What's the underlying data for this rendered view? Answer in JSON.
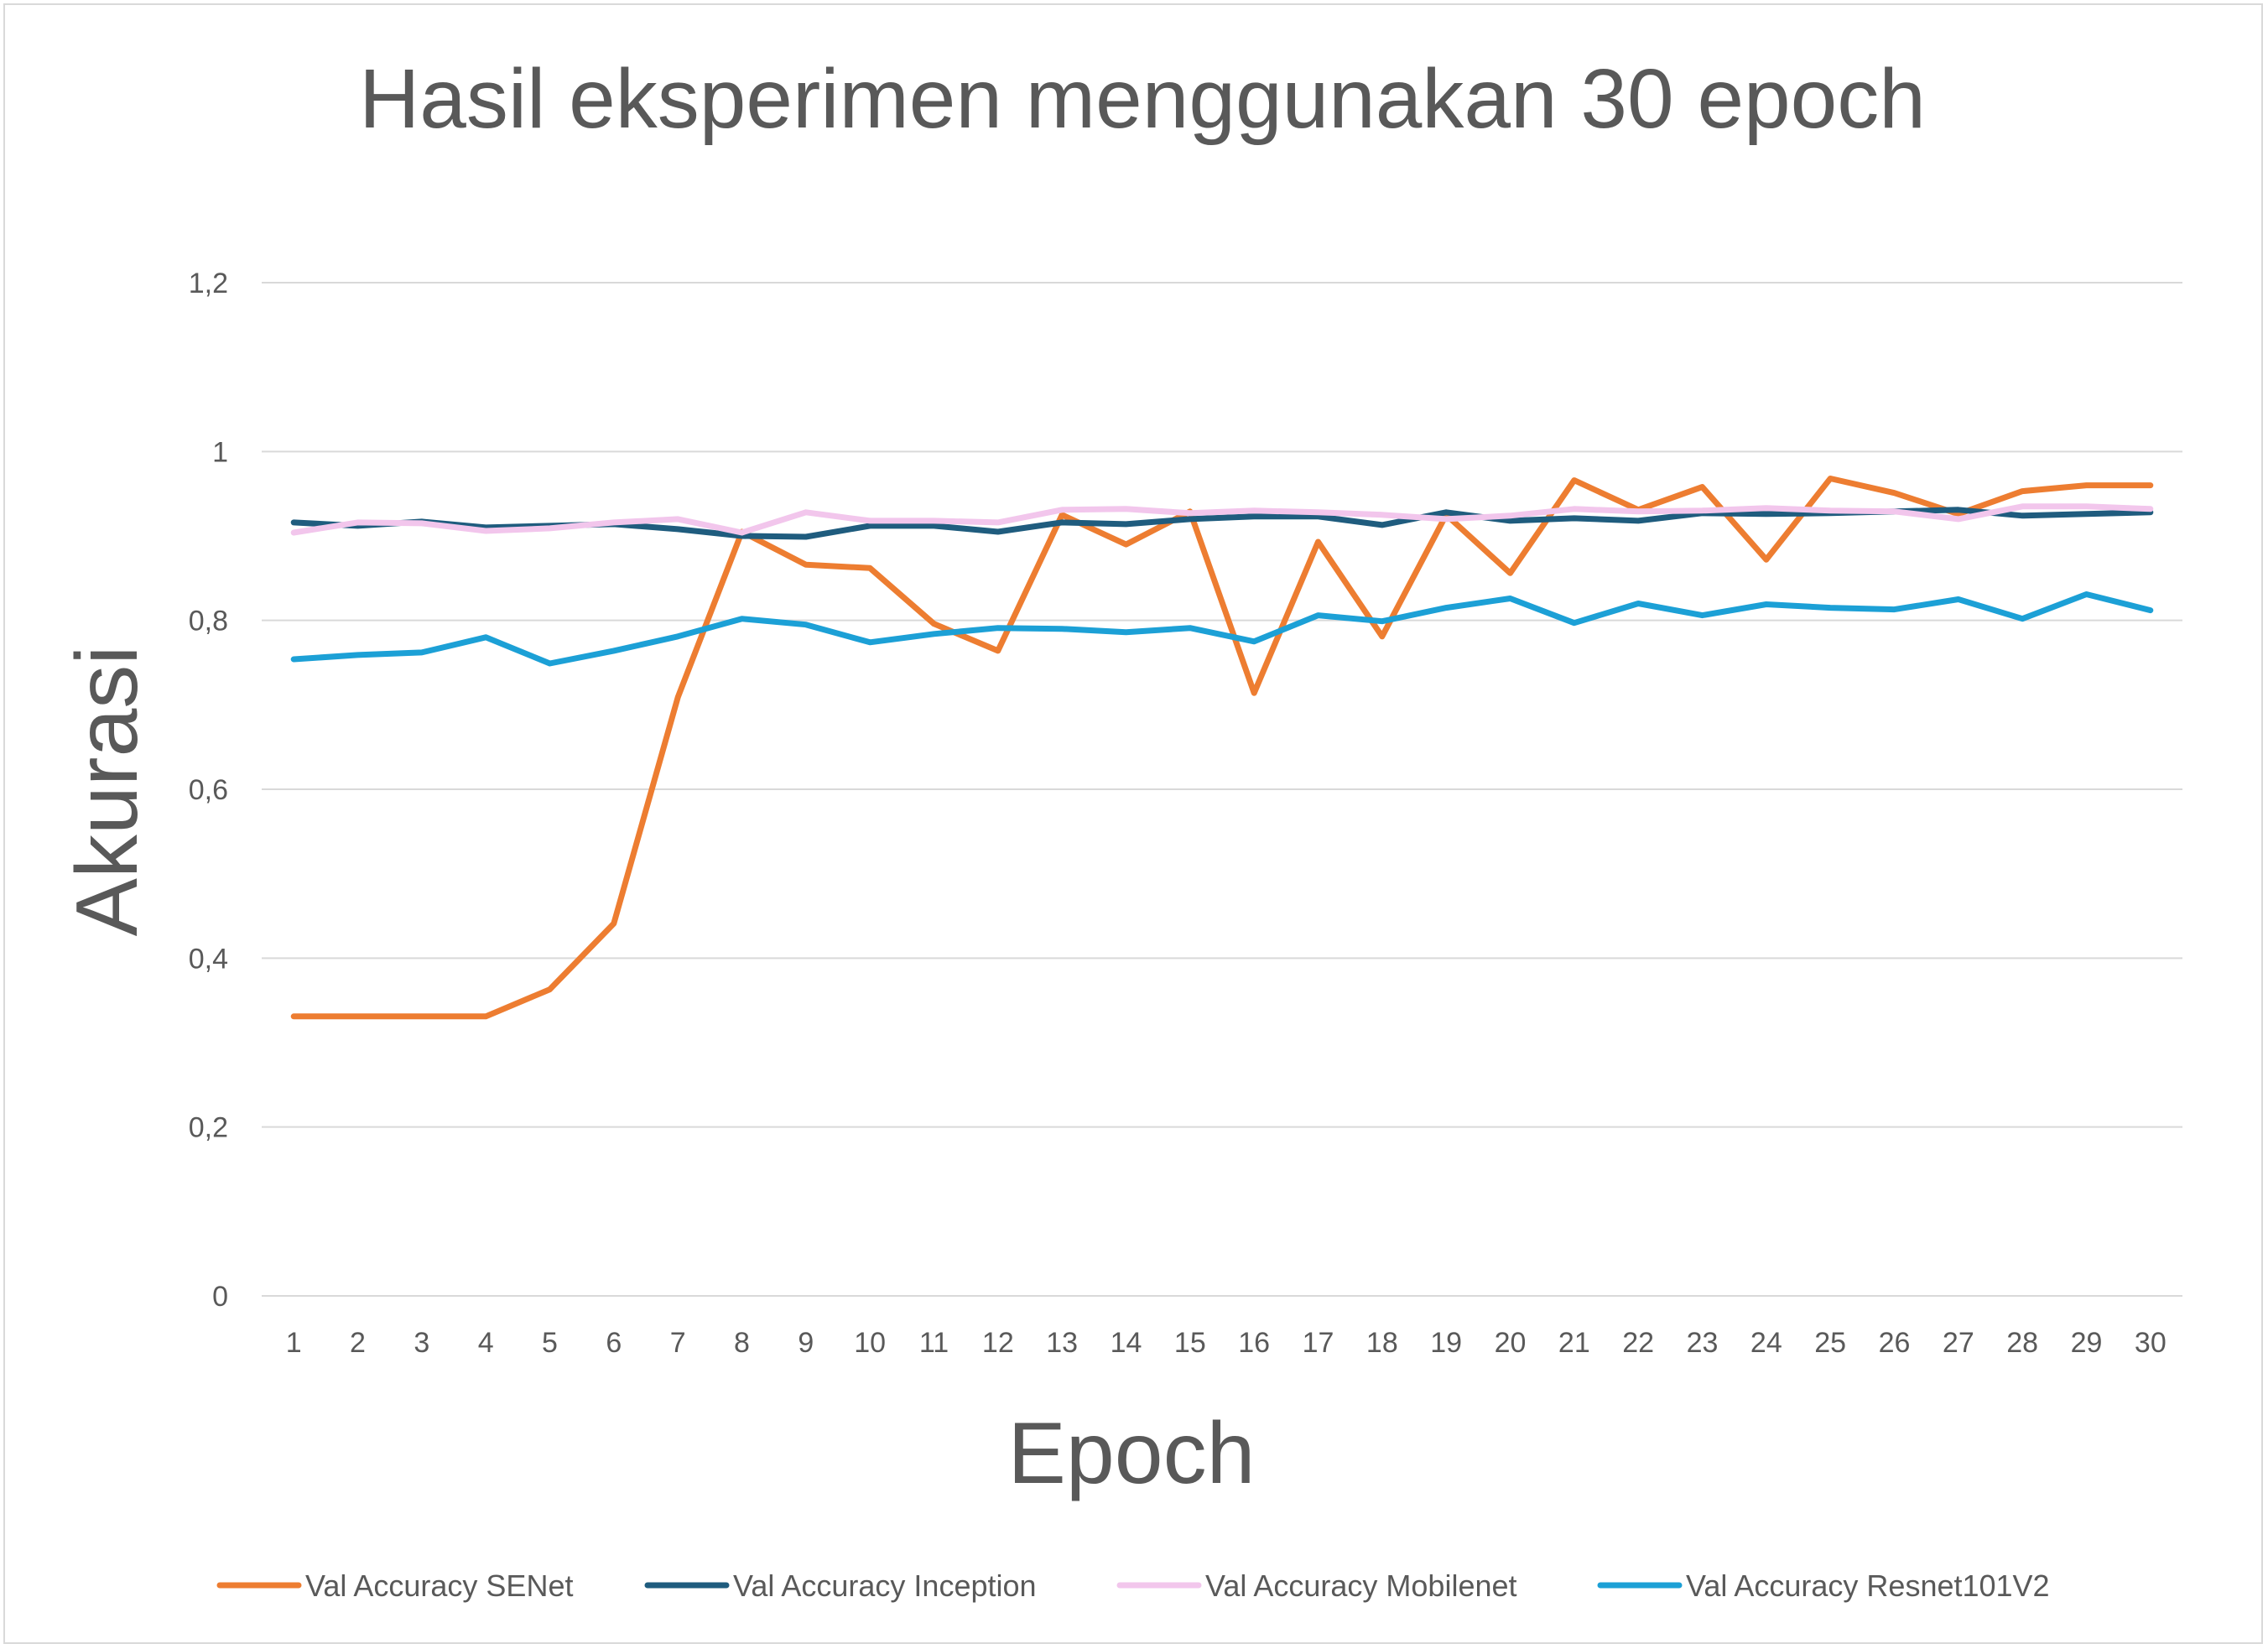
{
  "chart_data": {
    "type": "line",
    "title": "Hasil eksperimen menggunakan 30 epoch",
    "xlabel": "Epoch",
    "ylabel": "Akurasi",
    "ylim": [
      0,
      1.2
    ],
    "yticks": [
      0,
      0.2,
      0.4,
      0.6,
      0.8,
      1,
      1.2
    ],
    "ytick_labels": [
      "0",
      "0,2",
      "0,4",
      "0,6",
      "0,8",
      "1",
      "1,2"
    ],
    "grid": true,
    "legend_position": "bottom",
    "categories": [
      "1",
      "2",
      "3",
      "4",
      "5",
      "6",
      "7",
      "8",
      "9",
      "10",
      "11",
      "12",
      "13",
      "14",
      "15",
      "16",
      "17",
      "18",
      "19",
      "20",
      "21",
      "22",
      "23",
      "24",
      "25",
      "26",
      "27",
      "28",
      "29",
      "30"
    ],
    "series": [
      {
        "name": "Val Accuracy SENet",
        "color": "#ED7D31",
        "values": [
          0.331,
          0.331,
          0.331,
          0.331,
          0.363,
          0.441,
          0.709,
          0.905,
          0.866,
          0.862,
          0.796,
          0.764,
          0.925,
          0.89,
          0.929,
          0.714,
          0.893,
          0.781,
          0.925,
          0.856,
          0.966,
          0.931,
          0.958,
          0.872,
          0.968,
          0.951,
          0.926,
          0.953,
          0.96,
          0.96
        ]
      },
      {
        "name": "Val Accuracy Inception",
        "color": "#1F5C7E",
        "values": [
          0.916,
          0.912,
          0.917,
          0.91,
          0.912,
          0.914,
          0.908,
          0.9,
          0.899,
          0.912,
          0.912,
          0.905,
          0.916,
          0.914,
          0.92,
          0.923,
          0.923,
          0.913,
          0.928,
          0.918,
          0.921,
          0.918,
          0.927,
          0.926,
          0.927,
          0.929,
          0.931,
          0.924,
          0.926,
          0.928
        ]
      },
      {
        "name": "Val Accuracy Mobilenet",
        "color": "#F2C6EC",
        "values": [
          0.904,
          0.916,
          0.915,
          0.906,
          0.909,
          0.916,
          0.92,
          0.904,
          0.928,
          0.918,
          0.918,
          0.916,
          0.931,
          0.932,
          0.927,
          0.93,
          0.928,
          0.925,
          0.92,
          0.924,
          0.932,
          0.929,
          0.93,
          0.933,
          0.93,
          0.929,
          0.92,
          0.935,
          0.935,
          0.932
        ]
      },
      {
        "name": "Val Accuracy Resnet101V2",
        "color": "#1CA0D6",
        "values": [
          0.754,
          0.759,
          0.762,
          0.78,
          0.749,
          0.764,
          0.781,
          0.802,
          0.795,
          0.774,
          0.784,
          0.791,
          0.79,
          0.786,
          0.791,
          0.775,
          0.806,
          0.799,
          0.815,
          0.826,
          0.797,
          0.82,
          0.806,
          0.819,
          0.815,
          0.813,
          0.825,
          0.802,
          0.831,
          0.812
        ]
      }
    ]
  }
}
